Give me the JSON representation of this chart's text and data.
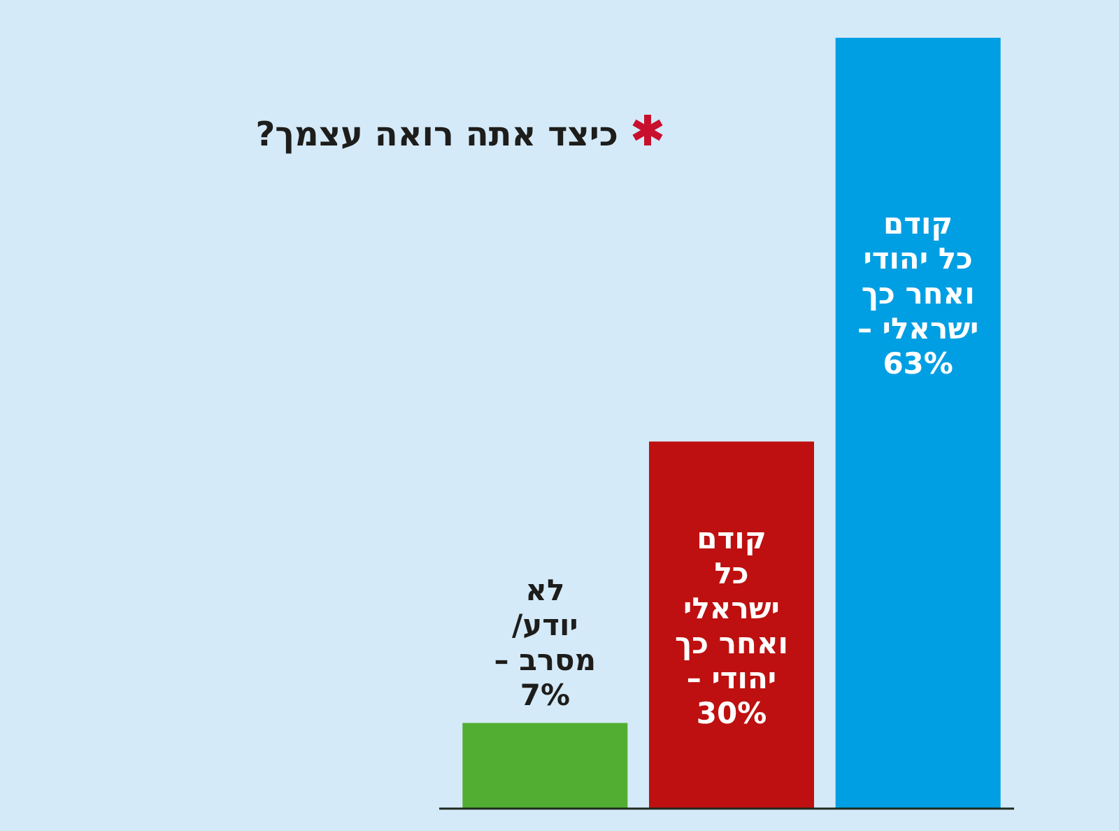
{
  "chart_data": {
    "type": "bar",
    "title": "כיצד אתה רואה עצמך?",
    "categories": [
      "לא\nיודע/\nמסרב –",
      "קודם\nכל\nישראלי\nואחר כך\nיהודי –",
      "קודם\nכל יהודי\nואחר כך\nישראלי –"
    ],
    "values": [
      7,
      30,
      63
    ],
    "colors": [
      "#52ae32",
      "#be1010",
      "#009fe3"
    ],
    "ylim": [
      0,
      63
    ],
    "value_labels": [
      "7%",
      "30%",
      "63%"
    ]
  }
}
